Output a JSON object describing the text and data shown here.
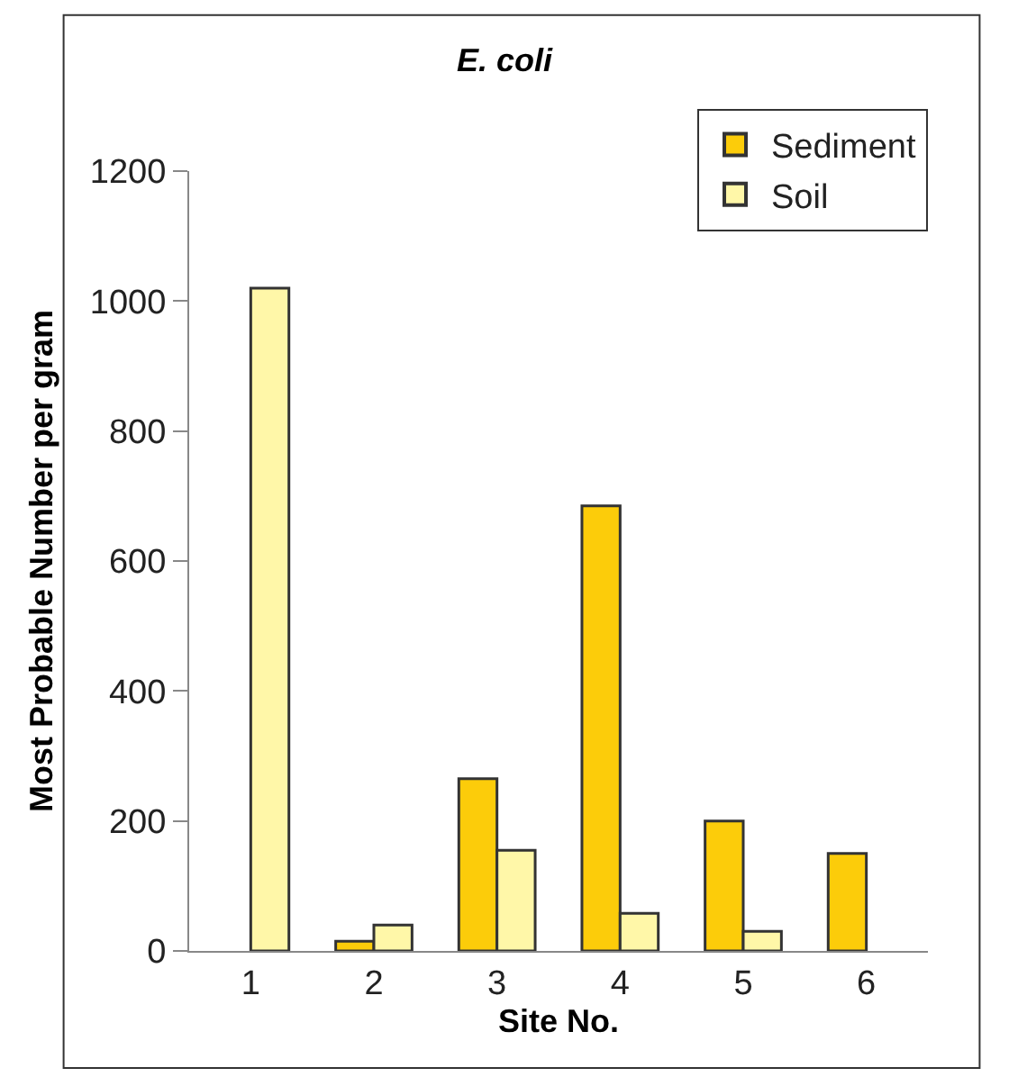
{
  "chart_data": {
    "type": "bar",
    "title": "E. coli",
    "xlabel": "Site No.",
    "ylabel": "Most Probable Number per gram",
    "categories": [
      "1",
      "2",
      "3",
      "4",
      "5",
      "6"
    ],
    "series": [
      {
        "name": "Sediment",
        "color": "#fccc0a",
        "values": [
          null,
          15,
          265,
          685,
          200,
          150
        ]
      },
      {
        "name": "Soil",
        "color": "#fff7a8",
        "values": [
          1020,
          40,
          155,
          58,
          30,
          null
        ]
      }
    ],
    "ylim": [
      0,
      1200
    ],
    "yticks": [
      0,
      200,
      400,
      600,
      800,
      1000,
      1200
    ],
    "legend": "top right"
  }
}
